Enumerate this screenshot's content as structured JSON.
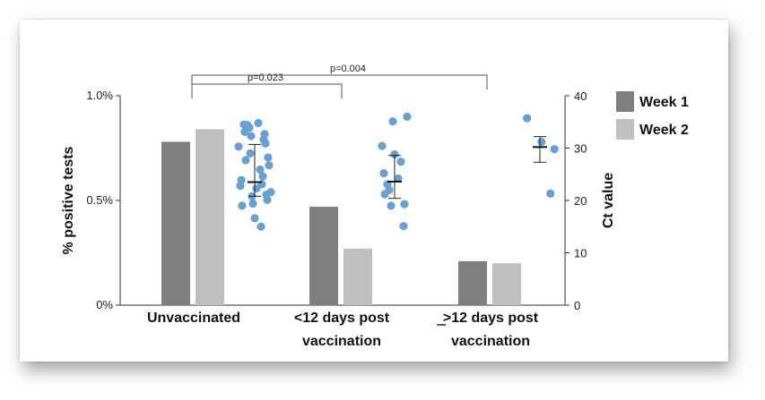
{
  "chart_data": {
    "type": "bar",
    "title": "",
    "categories": [
      {
        "lines": [
          "Unvaccinated"
        ],
        "underline_first_char": false
      },
      {
        "lines": [
          "<12 days post",
          "vaccination"
        ],
        "underline_first_char": false
      },
      {
        "lines": [
          ">12 days post",
          "vaccination"
        ],
        "underline_first_char": true
      }
    ],
    "series": [
      {
        "name": "Week 1",
        "color": "#7f7f7f",
        "values": [
          0.78,
          0.47,
          0.21
        ]
      },
      {
        "name": "Week 2",
        "color": "#bfbfbf",
        "values": [
          0.84,
          0.27,
          0.2
        ]
      }
    ],
    "y_left": {
      "label": "% positive tests",
      "range": [
        0,
        1.0
      ],
      "ticks": [
        0,
        0.5,
        1.0
      ],
      "tick_labels": [
        "0%",
        "0.5%",
        "1.0%"
      ]
    },
    "y_right": {
      "label": "Ct value",
      "range": [
        0,
        40
      ],
      "ticks": [
        0,
        10,
        20,
        30,
        40
      ],
      "tick_labels": [
        "0",
        "10",
        "20",
        "30",
        "40"
      ]
    },
    "scatter": {
      "color": "#6a9fd4",
      "axis": "right",
      "groups": [
        {
          "category": 0,
          "points": [
            34.5,
            34.8,
            34.4,
            33.9,
            33.1,
            32.7,
            32.3,
            31.6,
            30.9,
            30.3,
            29.0,
            28.2,
            27.7,
            26.7,
            25.9,
            24.6,
            23.9,
            23.1,
            22.8,
            22.3,
            21.6,
            21.1,
            20.8,
            20.1,
            19.4,
            19.0,
            16.6,
            15.0
          ],
          "mean": 23.5,
          "sd_low": 20.8,
          "sd_high": 30.7
        },
        {
          "category": 1,
          "points": [
            36.0,
            35.1,
            30.4,
            28.8,
            27.4,
            25.2,
            24.2,
            23.1,
            22.0,
            21.2,
            19.3,
            19.0,
            15.1
          ],
          "mean": 23.6,
          "sd_low": 20.4,
          "sd_high": 28.6
        },
        {
          "category": 2,
          "points": [
            35.7,
            31.2,
            29.8,
            21.3
          ],
          "mean": 30.2,
          "sd_low": 27.3,
          "sd_high": 32.2
        }
      ]
    },
    "significance": [
      {
        "from": 0,
        "to": 1,
        "label": "p=0.023"
      },
      {
        "from": 0,
        "to": 2,
        "label": "p=0.004"
      }
    ],
    "legend": {
      "position": "right"
    }
  }
}
